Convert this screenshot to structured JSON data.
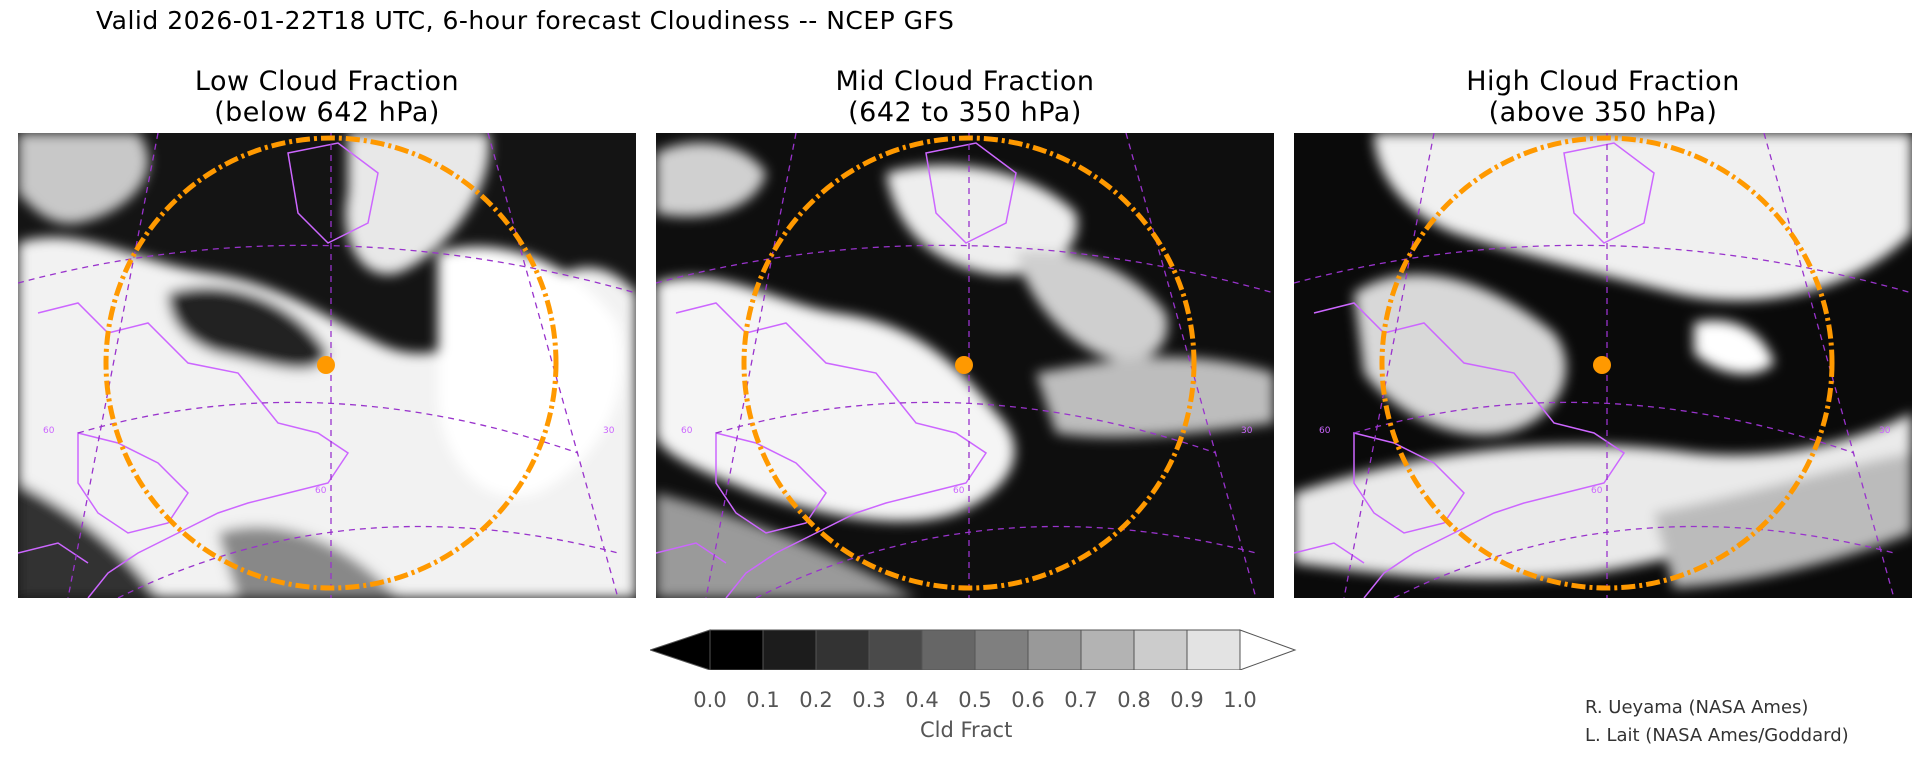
{
  "header": {
    "title": "Valid 2026-01-22T18 UTC, 6-hour forecast Cloudiness -- NCEP GFS"
  },
  "panels": [
    {
      "title_line1": "Low Cloud Fraction",
      "title_line2": "(below 642 hPa)",
      "grid_labels": [
        "60",
        "60",
        "30"
      ]
    },
    {
      "title_line1": "Mid Cloud Fraction",
      "title_line2": "(642 to 350 hPa)",
      "grid_labels": [
        "60",
        "60",
        "30"
      ]
    },
    {
      "title_line1": "High Cloud Fraction",
      "title_line2": "(above 350 hPa)",
      "grid_labels": [
        "60",
        "60",
        "30"
      ]
    }
  ],
  "colorbar": {
    "title": "Cld Fract",
    "ticks": [
      "0.0",
      "0.1",
      "0.2",
      "0.3",
      "0.4",
      "0.5",
      "0.6",
      "0.7",
      "0.8",
      "0.9",
      "1.0"
    ],
    "colors": [
      "#000000",
      "#1c1c1c",
      "#333333",
      "#4a4a4a",
      "#666666",
      "#7f7f7f",
      "#999999",
      "#b3b3b3",
      "#cccccc",
      "#e3e3e3",
      "#ffffff"
    ]
  },
  "credits": {
    "line1": "R. Ueyama (NASA Ames)",
    "line2": "L. Lait (NASA Ames/Goddard)"
  },
  "style": {
    "coastline_color": "#cc66ff",
    "gridline_color": "#9933cc",
    "marker_color": "#ff9900"
  }
}
